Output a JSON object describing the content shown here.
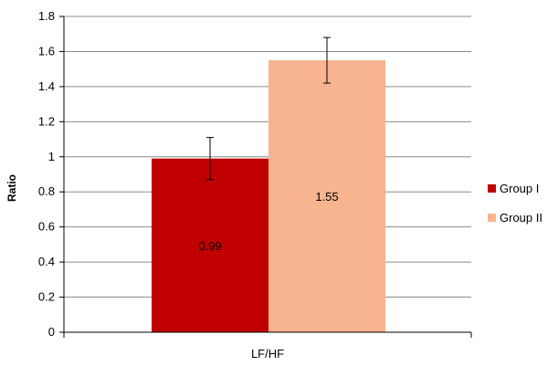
{
  "chart_data": {
    "type": "bar",
    "categories": [
      "LF/HF"
    ],
    "series": [
      {
        "name": "Group I",
        "values": [
          0.99
        ],
        "error": [
          0.12
        ],
        "label": "0.99"
      },
      {
        "name": "Group II",
        "values": [
          1.55
        ],
        "error": [
          0.13
        ],
        "label": "1.55"
      }
    ],
    "title": "",
    "xlabel": "",
    "ylabel": "Ratio",
    "ylim": [
      0,
      1.8
    ],
    "yticks": [
      "0",
      "0.2",
      "0.4",
      "0.6",
      "0.8",
      "1",
      "1.2",
      "1.4",
      "1.6",
      "1.8"
    ],
    "grid": true,
    "legend": "right",
    "colors": {
      "Group I": "#c00000",
      "Group II": "#f8b48f"
    }
  }
}
